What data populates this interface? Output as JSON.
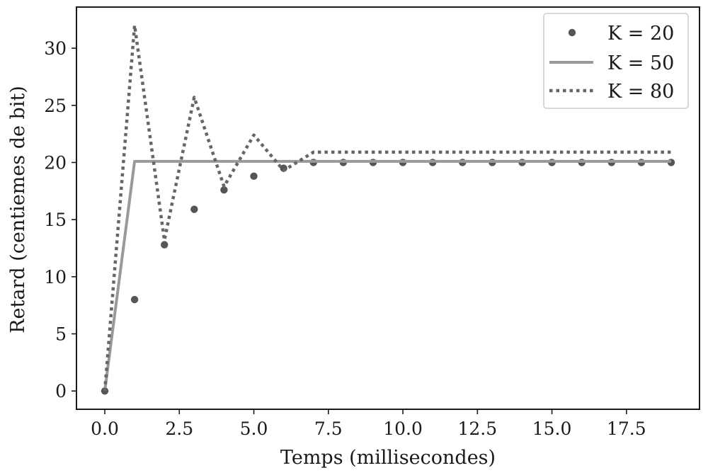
{
  "chart_data": {
    "type": "line",
    "title": "",
    "xlabel": "Temps (millisecondes)",
    "ylabel": "Retard (centiemes de bit)",
    "xlim": [
      -0.95,
      19.95
    ],
    "ylim": [
      -1.6,
      33.6
    ],
    "xticks": [
      0.0,
      2.5,
      5.0,
      7.5,
      10.0,
      12.5,
      15.0,
      17.5
    ],
    "xtick_labels": [
      "0.0",
      "2.5",
      "5.0",
      "7.5",
      "10.0",
      "12.5",
      "15.0",
      "17.5"
    ],
    "yticks": [
      0,
      5,
      10,
      15,
      20,
      25,
      30
    ],
    "ytick_labels": [
      "0",
      "5",
      "10",
      "15",
      "20",
      "25",
      "30"
    ],
    "grid": false,
    "legend_position": "top-right",
    "series": [
      {
        "name": "K = 20",
        "style": "points",
        "color": "#555555",
        "x": [
          0,
          1,
          2,
          3,
          4,
          5,
          6,
          7,
          8,
          9,
          10,
          11,
          12,
          13,
          14,
          15,
          16,
          17,
          18,
          19
        ],
        "y": [
          0,
          8.0,
          12.8,
          15.9,
          17.6,
          18.8,
          19.5,
          20.0,
          20.0,
          20.0,
          20.0,
          20.0,
          20.0,
          20.0,
          20.0,
          20.0,
          20.0,
          20.0,
          20.0,
          20.0
        ]
      },
      {
        "name": "K = 50",
        "style": "solid",
        "color": "#999999",
        "x": [
          0,
          1,
          2,
          3,
          4,
          5,
          6,
          7,
          8,
          9,
          10,
          11,
          12,
          13,
          14,
          15,
          16,
          17,
          18,
          19
        ],
        "y": [
          0,
          20.1,
          20.1,
          20.1,
          20.1,
          20.1,
          20.1,
          20.1,
          20.1,
          20.1,
          20.1,
          20.1,
          20.1,
          20.1,
          20.1,
          20.1,
          20.1,
          20.1,
          20.1,
          20.1
        ]
      },
      {
        "name": "K = 80",
        "style": "dotted",
        "color": "#666666",
        "x": [
          0,
          1,
          2,
          3,
          4,
          5,
          6,
          7,
          8,
          9,
          10,
          11,
          12,
          13,
          14,
          15,
          16,
          17,
          18,
          19
        ],
        "y": [
          0,
          32.0,
          13.2,
          25.7,
          17.9,
          22.4,
          19.3,
          20.9,
          20.9,
          20.9,
          20.9,
          20.9,
          20.9,
          20.9,
          20.9,
          20.9,
          20.9,
          20.9,
          20.9,
          20.9
        ]
      }
    ]
  }
}
